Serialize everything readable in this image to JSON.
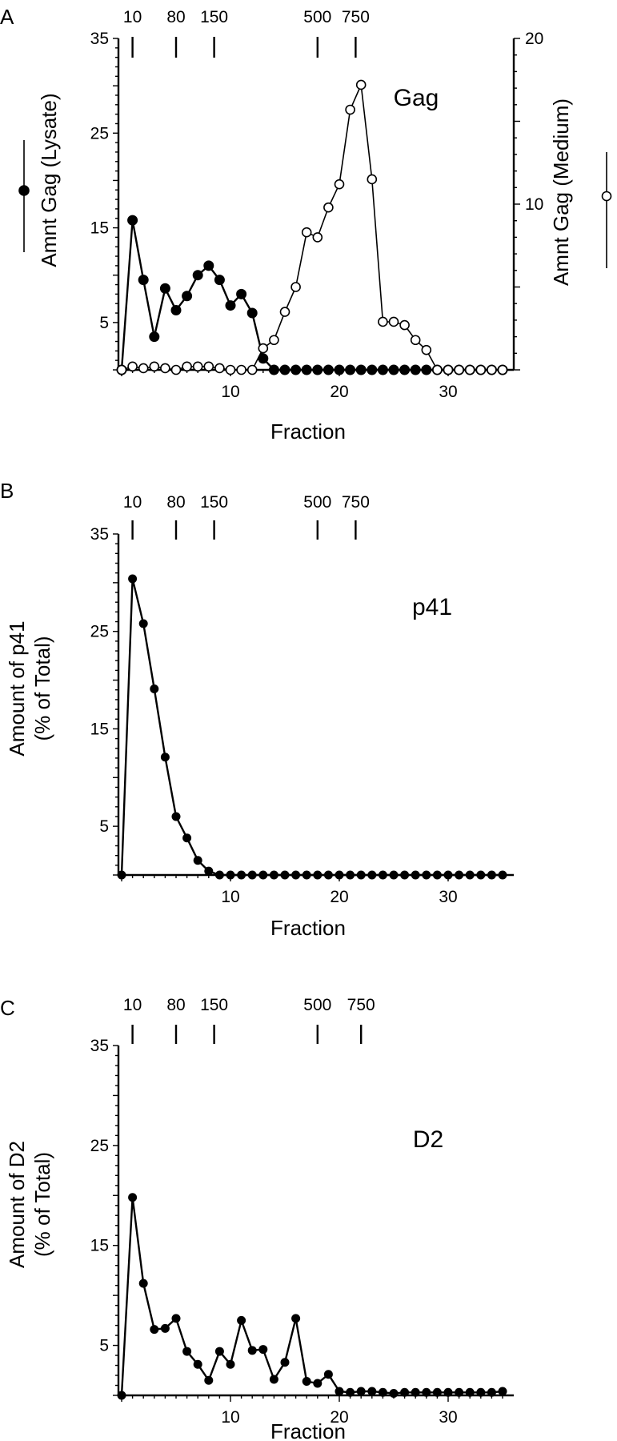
{
  "chart_data": [
    {
      "panel": "A",
      "type": "line",
      "label": "Gag",
      "xlabel": "Fraction",
      "ylabel_left": "Amnt Gag (Lysate)",
      "ylabel_right": "Amnt Gag (Medium)",
      "xlim": [
        0,
        36
      ],
      "ylim": [
        0,
        35
      ],
      "y2lim": [
        0,
        20
      ],
      "x_ticks": [
        10,
        20,
        30
      ],
      "y_ticks": [
        5,
        15,
        25,
        35
      ],
      "y2_ticks": [
        10,
        20
      ],
      "size_markers": [
        {
          "label": "10",
          "fraction": 1
        },
        {
          "label": "80",
          "fraction": 5
        },
        {
          "label": "150",
          "fraction": 8.5
        },
        {
          "label": "500",
          "fraction": 18
        },
        {
          "label": "750",
          "fraction": 21.5
        }
      ],
      "series": [
        {
          "marker": "filled",
          "axis": "left",
          "x": [
            0,
            1,
            2,
            3,
            4,
            5,
            6,
            7,
            8,
            9,
            10,
            11,
            12,
            13,
            14,
            15,
            16,
            17,
            18,
            19,
            20,
            21,
            22,
            23,
            24,
            25,
            26,
            27,
            28,
            29,
            30,
            31,
            32,
            33,
            34,
            35
          ],
          "values": [
            0,
            15.8,
            9.5,
            3.5,
            8.6,
            6.3,
            7.8,
            10,
            11,
            9.5,
            6.8,
            8,
            6,
            1.2,
            0,
            0,
            0,
            0,
            0,
            0,
            0,
            0,
            0,
            0,
            0,
            0,
            0,
            0,
            0,
            0,
            0,
            0,
            0,
            0,
            0,
            0
          ]
        },
        {
          "marker": "open",
          "axis": "right",
          "x": [
            0,
            1,
            2,
            3,
            4,
            5,
            6,
            7,
            8,
            9,
            10,
            11,
            12,
            13,
            14,
            15,
            16,
            17,
            18,
            19,
            20,
            21,
            22,
            23,
            24,
            25,
            26,
            27,
            28,
            29,
            30,
            31,
            32,
            33,
            34,
            35
          ],
          "values": [
            0,
            0.2,
            0.1,
            0.2,
            0.1,
            0,
            0.2,
            0.2,
            0.2,
            0.1,
            0,
            0,
            0,
            1.3,
            1.8,
            3.5,
            5,
            8.3,
            8,
            9.8,
            11.2,
            15.7,
            17.2,
            11.5,
            2.9,
            2.9,
            2.7,
            1.8,
            1.2,
            0,
            0,
            0,
            0,
            0,
            0,
            0
          ]
        }
      ]
    },
    {
      "panel": "B",
      "type": "line",
      "label": "p41",
      "xlabel": "Fraction",
      "ylabel": "Amount of p41",
      "ylabel_2": "(% of Total)",
      "xlim": [
        0,
        36
      ],
      "ylim": [
        0,
        35
      ],
      "x_ticks": [
        10,
        20,
        30
      ],
      "y_ticks": [
        5,
        15,
        25,
        35
      ],
      "size_markers": [
        {
          "label": "10",
          "fraction": 1
        },
        {
          "label": "80",
          "fraction": 5
        },
        {
          "label": "150",
          "fraction": 8.5
        },
        {
          "label": "500",
          "fraction": 18
        },
        {
          "label": "750",
          "fraction": 21.5
        }
      ],
      "series": [
        {
          "marker": "filled",
          "x": [
            0,
            1,
            2,
            3,
            4,
            5,
            6,
            7,
            8,
            9,
            10,
            11,
            12,
            13,
            14,
            15,
            16,
            17,
            18,
            19,
            20,
            21,
            22,
            23,
            24,
            25,
            26,
            27,
            28,
            29,
            30,
            31,
            32,
            33,
            34,
            35
          ],
          "values": [
            0,
            30.4,
            25.8,
            19.1,
            12.1,
            6,
            3.8,
            1.5,
            0.4,
            0,
            0,
            0,
            0,
            0,
            0,
            0,
            0,
            0,
            0,
            0,
            0,
            0,
            0,
            0,
            0,
            0,
            0,
            0,
            0,
            0,
            0,
            0,
            0,
            0,
            0,
            0
          ]
        }
      ]
    },
    {
      "panel": "C",
      "type": "line",
      "label": "D2",
      "xlabel": "Fraction",
      "ylabel": "Amount of D2",
      "ylabel_2": "(% of Total)",
      "xlim": [
        0,
        36
      ],
      "ylim": [
        0,
        35
      ],
      "x_ticks": [
        10,
        20,
        30
      ],
      "y_ticks": [
        5,
        15,
        25,
        35
      ],
      "size_markers": [
        {
          "label": "10",
          "fraction": 1
        },
        {
          "label": "80",
          "fraction": 5
        },
        {
          "label": "150",
          "fraction": 8.5
        },
        {
          "label": "500",
          "fraction": 18
        },
        {
          "label": "750",
          "fraction": 22
        }
      ],
      "series": [
        {
          "marker": "filled",
          "x": [
            0,
            1,
            2,
            3,
            4,
            5,
            6,
            7,
            8,
            9,
            10,
            11,
            12,
            13,
            14,
            15,
            16,
            17,
            18,
            19,
            20,
            21,
            22,
            23,
            24,
            25,
            26,
            27,
            28,
            29,
            30,
            31,
            32,
            33,
            34,
            35
          ],
          "values": [
            0,
            19.8,
            11.2,
            6.6,
            6.7,
            7.7,
            4.4,
            3.1,
            1.5,
            4.4,
            3.1,
            7.5,
            4.5,
            4.6,
            1.6,
            3.3,
            7.7,
            1.4,
            1.2,
            2.1,
            0.4,
            0.3,
            0.4,
            0.4,
            0.3,
            0.2,
            0.3,
            0.3,
            0.3,
            0.3,
            0.3,
            0.3,
            0.3,
            0.3,
            0.3,
            0.4
          ]
        }
      ]
    }
  ]
}
